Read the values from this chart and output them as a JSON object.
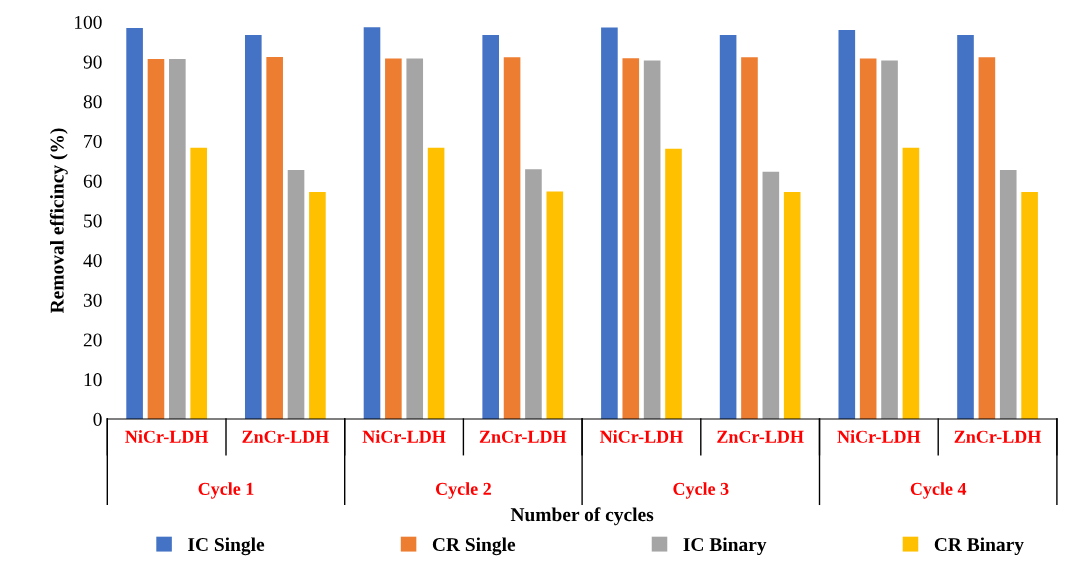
{
  "chart_data": {
    "type": "bar",
    "xlabel": "Number of cycles",
    "ylabel": "Removal efficincy (%)",
    "categories": [
      "NiCr-LDH",
      "ZnCr-LDH",
      "NiCr-LDH",
      "ZnCr-LDH",
      "NiCr-LDH",
      "ZnCr-LDH",
      "NiCr-LDH",
      "ZnCr-LDH"
    ],
    "annotations": [
      "Cycle 1",
      "Cycle 2",
      "Cycle 3",
      "Cycle 4"
    ],
    "series": [
      {
        "name": "IC Single",
        "color": "#4472c4",
        "values": [
          98.5,
          96.7,
          98.7,
          96.7,
          98.6,
          96.7,
          98.0,
          96.7
        ]
      },
      {
        "name": "CR Single",
        "color": "#ed7d31",
        "values": [
          90.7,
          91.2,
          90.8,
          91.1,
          90.9,
          91.1,
          90.8,
          91.1
        ]
      },
      {
        "name": "IC Binary",
        "color": "#a5a5a5",
        "values": [
          90.7,
          62.7,
          90.8,
          62.9,
          90.3,
          62.3,
          90.3,
          62.7
        ]
      },
      {
        "name": "CR Binary",
        "color": "#ffc000",
        "values": [
          68.3,
          57.2,
          68.3,
          57.3,
          68.1,
          57.2,
          68.3,
          57.2
        ]
      }
    ],
    "ylim": [
      0,
      100
    ],
    "yticks": [
      0,
      10,
      20,
      30,
      40,
      50,
      60,
      70,
      80,
      90,
      100
    ],
    "grid": false,
    "legend": "bottom"
  }
}
